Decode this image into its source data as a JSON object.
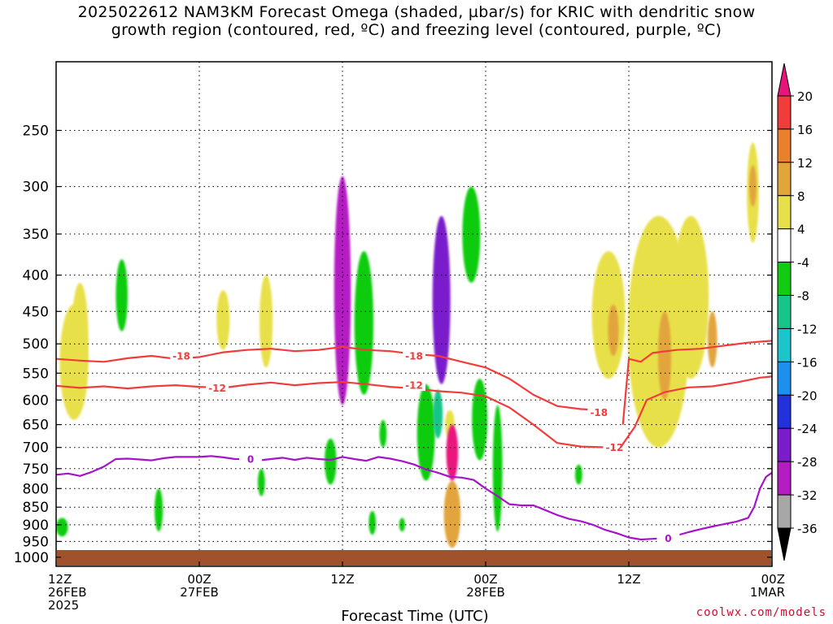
{
  "title": {
    "line1": "2025022612 NAM3KM Forecast Omega (shaded, µbar/s) for KRIC with dendritic snow",
    "line2": "growth region (contoured, red, ºC) and freezing level (contoured, purple, ºC)"
  },
  "credit": "coolwx.com/models",
  "chart_data": {
    "type": "heatmap",
    "title": "2025022612 NAM3KM Forecast Omega (shaded, µbar/s) for KRIC with dendritic snow growth region (contoured, red, ºC) and freezing level (contoured, purple, ºC)",
    "xlabel": "Forecast Time (UTC)",
    "ylabel": "",
    "x_ticks": [
      {
        "hour": 0,
        "lines": [
          "12Z",
          "26FEB",
          "2025"
        ]
      },
      {
        "hour": 12,
        "lines": [
          "00Z",
          "27FEB"
        ]
      },
      {
        "hour": 24,
        "lines": [
          "12Z"
        ]
      },
      {
        "hour": 36,
        "lines": [
          "00Z",
          "28FEB"
        ]
      },
      {
        "hour": 48,
        "lines": [
          "12Z"
        ]
      },
      {
        "hour": 60,
        "lines": [
          "00Z",
          "1MAR"
        ]
      }
    ],
    "x_range_hours": [
      0,
      60
    ],
    "y_ticks_hPa": [
      250,
      300,
      350,
      400,
      450,
      500,
      550,
      600,
      650,
      700,
      750,
      800,
      850,
      900,
      950,
      1000
    ],
    "y_range_hPa": [
      200,
      1030
    ],
    "y_scale": "log-pressure",
    "grid": true,
    "colorbar": {
      "labels": [
        20,
        16,
        12,
        8,
        4,
        -4,
        -8,
        -12,
        -16,
        -20,
        -24,
        -28,
        -32,
        -36
      ],
      "bins": [
        {
          "lo": 20,
          "hi": null,
          "color": "#e8147e"
        },
        {
          "lo": 16,
          "hi": 20,
          "color": "#f23c3c"
        },
        {
          "lo": 12,
          "hi": 16,
          "color": "#ec7f2b"
        },
        {
          "lo": 8,
          "hi": 12,
          "color": "#e2a53c"
        },
        {
          "lo": 4,
          "hi": 8,
          "color": "#e8e04a"
        },
        {
          "lo": -4,
          "hi": 4,
          "color": "#ffffff"
        },
        {
          "lo": -8,
          "hi": -4,
          "color": "#11cc11"
        },
        {
          "lo": -12,
          "hi": -8,
          "color": "#17c489"
        },
        {
          "lo": -16,
          "hi": -12,
          "color": "#1cc4cc"
        },
        {
          "lo": -20,
          "hi": -16,
          "color": "#1d8fee"
        },
        {
          "lo": -24,
          "hi": -20,
          "color": "#2132dd"
        },
        {
          "lo": -28,
          "hi": -24,
          "color": "#7a1ccc"
        },
        {
          "lo": -32,
          "hi": -28,
          "color": "#b51cc4"
        },
        {
          "lo": -36,
          "hi": -32,
          "color": "#a7a7a7"
        },
        {
          "lo": null,
          "hi": -36,
          "color": "#000000"
        }
      ]
    },
    "omega_cells": [
      {
        "hour": 24.0,
        "p_top": 290,
        "p_bot": 610,
        "width_h": 1.4,
        "value": -30
      },
      {
        "hour": 25.8,
        "p_top": 370,
        "p_bot": 590,
        "width_h": 1.6,
        "value": -6
      },
      {
        "hour": 23.0,
        "p_top": 680,
        "p_bot": 790,
        "width_h": 1.0,
        "value": -6
      },
      {
        "hour": 32.3,
        "p_top": 330,
        "p_bot": 570,
        "width_h": 1.5,
        "value": -28
      },
      {
        "hour": 31.0,
        "p_top": 570,
        "p_bot": 780,
        "width_h": 1.5,
        "value": -7
      },
      {
        "hour": 32.0,
        "p_top": 580,
        "p_bot": 680,
        "width_h": 0.8,
        "value": -12
      },
      {
        "hour": 34.8,
        "p_top": 300,
        "p_bot": 410,
        "width_h": 1.5,
        "value": -6
      },
      {
        "hour": 35.5,
        "p_top": 560,
        "p_bot": 730,
        "width_h": 1.3,
        "value": -6
      },
      {
        "hour": 37.0,
        "p_top": 610,
        "p_bot": 920,
        "width_h": 0.8,
        "value": -6
      },
      {
        "hour": 5.5,
        "p_top": 380,
        "p_bot": 480,
        "width_h": 1.0,
        "value": -6
      },
      {
        "hour": 8.6,
        "p_top": 800,
        "p_bot": 920,
        "width_h": 0.7,
        "value": -6
      },
      {
        "hour": 17.2,
        "p_top": 750,
        "p_bot": 820,
        "width_h": 0.6,
        "value": -6
      },
      {
        "hour": 27.4,
        "p_top": 640,
        "p_bot": 700,
        "width_h": 0.6,
        "value": -6
      },
      {
        "hour": 29.0,
        "p_top": 880,
        "p_bot": 920,
        "width_h": 0.5,
        "value": -6
      },
      {
        "hour": 0.5,
        "p_top": 880,
        "p_bot": 935,
        "width_h": 1.0,
        "value": -6
      },
      {
        "hour": 43.8,
        "p_top": 740,
        "p_bot": 790,
        "width_h": 0.6,
        "value": -6
      },
      {
        "hour": 26.5,
        "p_top": 860,
        "p_bot": 930,
        "width_h": 0.6,
        "value": -6
      },
      {
        "hour": 33.2,
        "p_top": 650,
        "p_bot": 780,
        "width_h": 1.0,
        "value": 22
      },
      {
        "hour": 33.2,
        "p_top": 780,
        "p_bot": 970,
        "width_h": 1.4,
        "value": 9
      },
      {
        "hour": 33.0,
        "p_top": 620,
        "p_bot": 680,
        "width_h": 0.8,
        "value": 5
      },
      {
        "hour": 1.5,
        "p_top": 440,
        "p_bot": 640,
        "width_h": 2.4,
        "value": 5
      },
      {
        "hour": 2.0,
        "p_top": 410,
        "p_bot": 580,
        "width_h": 1.4,
        "value": 5
      },
      {
        "hour": 14.0,
        "p_top": 420,
        "p_bot": 510,
        "width_h": 1.1,
        "value": 5
      },
      {
        "hour": 17.6,
        "p_top": 400,
        "p_bot": 540,
        "width_h": 1.1,
        "value": 5
      },
      {
        "hour": 50.5,
        "p_top": 330,
        "p_bot": 700,
        "width_h": 5.2,
        "value": 6
      },
      {
        "hour": 46.3,
        "p_top": 370,
        "p_bot": 560,
        "width_h": 2.8,
        "value": 6
      },
      {
        "hour": 53.2,
        "p_top": 330,
        "p_bot": 560,
        "width_h": 3.0,
        "value": 6
      },
      {
        "hour": 58.4,
        "p_top": 260,
        "p_bot": 360,
        "width_h": 1.0,
        "value": 6
      },
      {
        "hour": 58.4,
        "p_top": 280,
        "p_bot": 320,
        "width_h": 0.6,
        "value": 10
      },
      {
        "hour": 51.0,
        "p_top": 450,
        "p_bot": 600,
        "width_h": 1.1,
        "value": 9
      },
      {
        "hour": 46.7,
        "p_top": 440,
        "p_bot": 520,
        "width_h": 0.9,
        "value": 9
      },
      {
        "hour": 55.0,
        "p_top": 450,
        "p_bot": 540,
        "width_h": 0.8,
        "value": 9
      }
    ],
    "series": [
      {
        "name": "-18",
        "color": "#f23c3c",
        "label_at": [
          [
            10.5,
            520
          ],
          [
            30.0,
            520
          ],
          [
            45.5,
            625
          ]
        ],
        "points": [
          [
            0,
            525
          ],
          [
            2,
            528
          ],
          [
            4,
            530
          ],
          [
            6,
            524
          ],
          [
            8,
            520
          ],
          [
            10,
            525
          ],
          [
            12,
            522
          ],
          [
            14,
            514
          ],
          [
            16,
            510
          ],
          [
            18,
            508
          ],
          [
            20,
            512
          ],
          [
            22,
            510
          ],
          [
            24,
            505
          ],
          [
            26,
            510
          ],
          [
            28,
            512
          ],
          [
            30,
            517
          ],
          [
            32,
            520
          ],
          [
            34,
            530
          ],
          [
            36,
            540
          ],
          [
            38,
            560
          ],
          [
            40,
            590
          ],
          [
            42,
            612
          ],
          [
            44,
            618
          ],
          [
            45.5,
            620
          ]
        ]
      },
      {
        "name": "-18",
        "color": "#f23c3c",
        "label_at": [],
        "points": [
          [
            47.5,
            650
          ],
          [
            48,
            525
          ],
          [
            49,
            530
          ],
          [
            50,
            515
          ],
          [
            52,
            510
          ],
          [
            54,
            508
          ],
          [
            56,
            503
          ],
          [
            58,
            498
          ],
          [
            60,
            495
          ]
        ]
      },
      {
        "name": "-12",
        "color": "#f23c3c",
        "label_at": [
          [
            13.5,
            577
          ],
          [
            30.0,
            572
          ],
          [
            46.8,
            700
          ]
        ],
        "points": [
          [
            0,
            573
          ],
          [
            2,
            577
          ],
          [
            4,
            574
          ],
          [
            6,
            578
          ],
          [
            8,
            574
          ],
          [
            10,
            572
          ],
          [
            12,
            575
          ],
          [
            14,
            577
          ],
          [
            16,
            571
          ],
          [
            18,
            567
          ],
          [
            20,
            572
          ],
          [
            22,
            568
          ],
          [
            24,
            566
          ],
          [
            26,
            570
          ],
          [
            28,
            575
          ],
          [
            30,
            578
          ],
          [
            32,
            583
          ],
          [
            34,
            586
          ],
          [
            36,
            593
          ],
          [
            38,
            615
          ],
          [
            40,
            650
          ],
          [
            42,
            690
          ],
          [
            44,
            698
          ],
          [
            46.5,
            700
          ]
        ]
      },
      {
        "name": "-12",
        "color": "#f23c3c",
        "label_at": [],
        "points": [
          [
            47.3,
            700
          ],
          [
            48.5,
            655
          ],
          [
            49.5,
            600
          ],
          [
            51,
            585
          ],
          [
            53,
            576
          ],
          [
            55,
            574
          ],
          [
            57,
            567
          ],
          [
            59,
            558
          ],
          [
            60,
            556
          ]
        ]
      },
      {
        "name": "0",
        "color": "#a514c8",
        "label_at": [
          [
            16.3,
            727
          ],
          [
            51.3,
            940
          ]
        ],
        "points": [
          [
            0,
            765
          ],
          [
            1,
            762
          ],
          [
            2,
            768
          ],
          [
            3,
            758
          ],
          [
            4,
            745
          ],
          [
            5,
            727
          ],
          [
            6,
            726
          ],
          [
            7,
            728
          ],
          [
            8,
            730
          ],
          [
            9,
            725
          ],
          [
            10,
            722
          ],
          [
            11,
            722
          ],
          [
            12,
            722
          ],
          [
            13,
            720
          ],
          [
            14,
            723
          ],
          [
            15,
            727
          ],
          [
            16,
            727
          ],
          [
            17,
            730
          ],
          [
            18,
            727
          ],
          [
            19,
            724
          ],
          [
            20,
            729
          ],
          [
            21,
            724
          ],
          [
            22,
            727
          ],
          [
            23,
            729
          ],
          [
            24,
            722
          ],
          [
            25,
            727
          ],
          [
            26,
            731
          ],
          [
            27,
            722
          ],
          [
            28,
            726
          ],
          [
            29,
            732
          ],
          [
            30,
            740
          ],
          [
            31,
            752
          ],
          [
            32,
            760
          ],
          [
            33,
            770
          ],
          [
            34,
            772
          ],
          [
            35,
            778
          ],
          [
            36,
            800
          ],
          [
            37,
            820
          ],
          [
            38,
            842
          ],
          [
            39,
            845
          ],
          [
            40,
            845
          ],
          [
            41,
            858
          ],
          [
            42,
            872
          ],
          [
            43,
            883
          ],
          [
            44,
            890
          ],
          [
            45,
            900
          ],
          [
            46,
            915
          ],
          [
            47,
            925
          ],
          [
            48,
            938
          ],
          [
            49,
            944
          ],
          [
            50,
            942
          ],
          [
            51,
            940
          ],
          [
            52,
            932
          ],
          [
            53,
            922
          ],
          [
            54,
            913
          ],
          [
            55,
            905
          ],
          [
            56,
            898
          ],
          [
            57,
            891
          ],
          [
            58,
            880
          ],
          [
            58.5,
            850
          ],
          [
            59,
            800
          ],
          [
            59.5,
            770
          ],
          [
            60,
            760
          ]
        ]
      }
    ]
  }
}
